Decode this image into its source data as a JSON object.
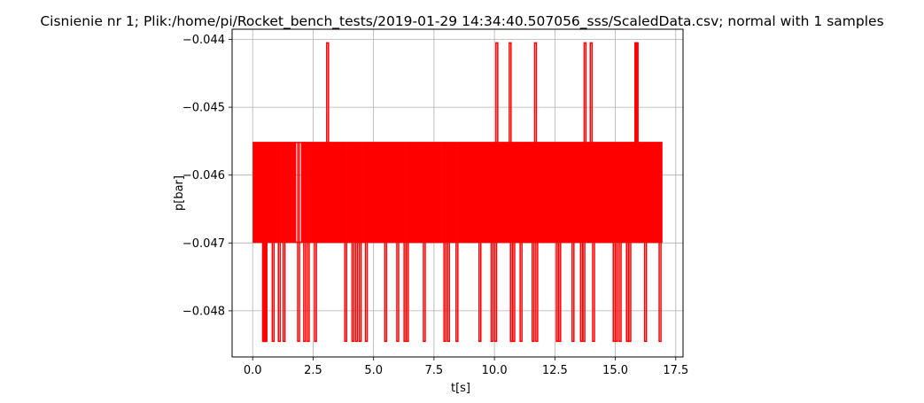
{
  "chart_data": {
    "type": "line",
    "title": "Cisnienie nr 1; Plik:/home/pi/Rocket_bench_tests/2019-01-29 14:34:40.507056_sss/ScaledData.csv; normal with 1 samples",
    "xlabel": "t[s]",
    "ylabel": "p[bar]",
    "xlim": [
      -0.85,
      17.8
    ],
    "ylim": [
      -0.04868,
      -0.04385
    ],
    "xticks": [
      0.0,
      2.5,
      5.0,
      7.5,
      10.0,
      12.5,
      15.0,
      17.5
    ],
    "xtick_labels": [
      "0.0",
      "2.5",
      "5.0",
      "7.5",
      "10.0",
      "12.5",
      "15.0",
      "17.5"
    ],
    "yticks": [
      -0.048,
      -0.047,
      -0.046,
      -0.045,
      -0.044
    ],
    "ytick_labels": [
      "−0.048",
      "−0.047",
      "−0.046",
      "−0.045",
      "−0.044"
    ],
    "grid": true,
    "line_color": "#ff0000",
    "levels": {
      "low": -0.04845,
      "mid_low": -0.04699,
      "mid_high": -0.04552,
      "high": -0.04405
    },
    "time_range": [
      0.0,
      16.95
    ],
    "spikes_high": [
      3.1,
      10.1,
      10.65,
      11.7,
      13.75,
      14.0,
      15.85,
      15.9
    ],
    "spikes_low": [
      0.45,
      0.5,
      0.55,
      0.85,
      1.1,
      1.3,
      1.9,
      2.15,
      2.3,
      2.6,
      3.85,
      4.15,
      4.3,
      4.45,
      4.7,
      5.5,
      6.0,
      6.3,
      6.4,
      7.1,
      7.95,
      8.1,
      8.45,
      9.4,
      9.9,
      10.05,
      10.7,
      10.8,
      11.1,
      11.6,
      11.75,
      12.6,
      12.7,
      13.25,
      13.6,
      13.7,
      14.1,
      14.95,
      15.05,
      15.2,
      15.5,
      15.6,
      16.25,
      16.85
    ],
    "dense_segments": [
      [
        0.0,
        0.45
      ],
      [
        0.5,
        1.2
      ],
      [
        1.25,
        1.8
      ],
      [
        2.0,
        2.3
      ],
      [
        2.35,
        3.85
      ],
      [
        3.9,
        4.15
      ],
      [
        4.2,
        4.55
      ],
      [
        4.6,
        5.05
      ],
      [
        5.1,
        5.75
      ],
      [
        5.8,
        6.25
      ],
      [
        6.3,
        6.85
      ],
      [
        6.9,
        7.75
      ],
      [
        7.8,
        8.45
      ],
      [
        8.5,
        16.95
      ]
    ]
  }
}
